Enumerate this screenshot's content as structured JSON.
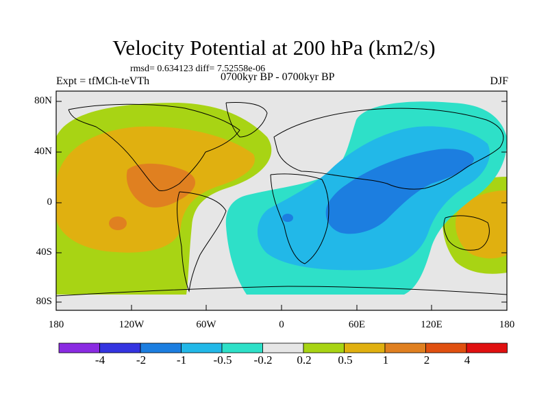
{
  "title": "Velocity Potential at 200 hPa (km2/s)",
  "stats": "rmsd= 0.634123 diff= 7.52558e-06",
  "left_label": "Expt = tfMCh-teVTh",
  "center_label": "0700kyr BP - 0700kyr BP",
  "right_label": "DJF",
  "y_ticks": [
    "80N",
    "40N",
    "0",
    "40S",
    "80S"
  ],
  "x_ticks": [
    "180",
    "120W",
    "60W",
    "0",
    "60E",
    "120E",
    "180"
  ],
  "colorbar": {
    "labels": [
      "-4",
      "-2",
      "-1",
      "-0.5",
      "-0.2",
      "0.2",
      "0.5",
      "1",
      "2",
      "4"
    ],
    "colors": [
      "#8a2be2",
      "#3434e0",
      "#1c7ee0",
      "#22b8e8",
      "#2ee0c8",
      "#e6e6e6",
      "#a8d414",
      "#e0b010",
      "#e08020",
      "#e05010",
      "#e01010"
    ]
  }
}
